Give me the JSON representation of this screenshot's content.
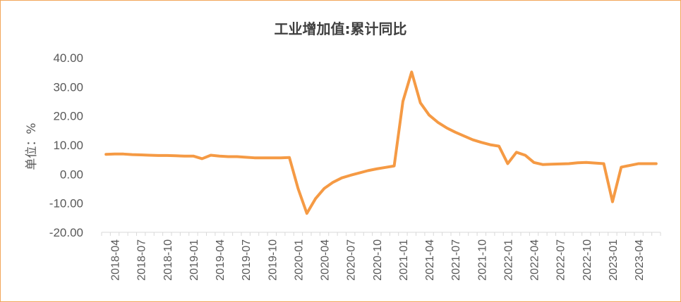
{
  "chart_data": {
    "type": "line",
    "title": "工业增加值:累计同比",
    "xlabel": "",
    "ylabel": "单位：%",
    "ylim": [
      -20,
      40
    ],
    "y_ticks": [
      "-20.00",
      "-10.00",
      "0.00",
      "10.00",
      "20.00",
      "30.00",
      "40.00"
    ],
    "x_tick_labels": [
      "2018-04",
      "2018-07",
      "2018-10",
      "2019-01",
      "2019-04",
      "2019-07",
      "2019-10",
      "2020-01",
      "2020-04",
      "2020-07",
      "2020-10",
      "2021-01",
      "2021-04",
      "2021-07",
      "2021-10",
      "2022-01",
      "2022-04",
      "2022-07",
      "2022-10",
      "2023-01",
      "2023-04"
    ],
    "grid": false,
    "legend": "none",
    "line_color": "#F59A44",
    "series": [
      {
        "x": [
          "2018-03",
          "2018-04",
          "2018-05",
          "2018-06",
          "2018-07",
          "2018-08",
          "2018-09",
          "2018-10",
          "2018-11",
          "2018-12",
          "2019-01",
          "2019-02",
          "2019-03",
          "2019-04",
          "2019-05",
          "2019-06",
          "2019-07",
          "2019-08",
          "2019-09",
          "2019-10",
          "2019-11",
          "2019-12",
          "2020-01",
          "2020-02",
          "2020-03",
          "2020-04",
          "2020-05",
          "2020-06",
          "2020-07",
          "2020-08",
          "2020-09",
          "2020-10",
          "2020-11",
          "2020-12",
          "2021-01",
          "2021-02",
          "2021-03",
          "2021-04",
          "2021-05",
          "2021-06",
          "2021-07",
          "2021-08",
          "2021-09",
          "2021-10",
          "2021-11",
          "2021-12",
          "2022-01",
          "2022-02",
          "2022-03",
          "2022-04",
          "2022-05",
          "2022-06",
          "2022-07",
          "2022-08",
          "2022-09",
          "2022-10",
          "2022-11",
          "2022-12",
          "2023-01",
          "2023-02",
          "2023-03",
          "2023-04",
          "2023-05",
          "2023-06"
        ],
        "values": [
          6.8,
          6.9,
          6.9,
          6.7,
          6.6,
          6.5,
          6.4,
          6.4,
          6.3,
          6.2,
          6.2,
          5.3,
          6.5,
          6.2,
          6.0,
          6.0,
          5.8,
          5.6,
          5.6,
          5.6,
          5.6,
          5.7,
          -5.0,
          -13.5,
          -8.4,
          -4.9,
          -2.8,
          -1.3,
          -0.4,
          0.4,
          1.2,
          1.8,
          2.3,
          2.8,
          25.0,
          35.1,
          24.5,
          20.3,
          17.8,
          15.9,
          14.4,
          13.1,
          11.8,
          10.9,
          10.1,
          9.6,
          3.6,
          7.5,
          6.5,
          4.0,
          3.3,
          3.4,
          3.5,
          3.6,
          3.9,
          4.0,
          3.8,
          3.6,
          -9.5,
          2.4,
          3.0,
          3.6,
          3.6,
          3.6
        ]
      }
    ]
  }
}
